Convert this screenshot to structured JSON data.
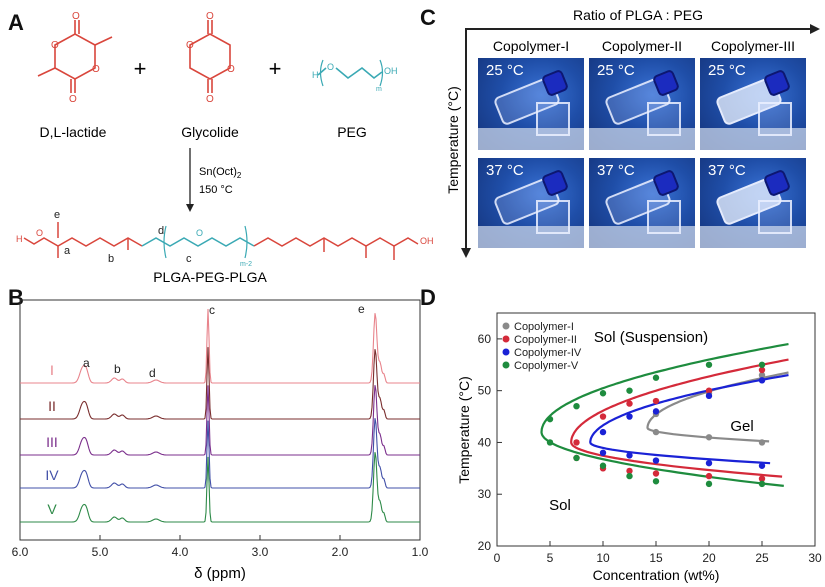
{
  "panels": {
    "A": {
      "letter": "A",
      "reactants": [
        "D,L-lactide",
        "Glycolide",
        "PEG"
      ],
      "plus": "+",
      "catalyst": "Sn(Oct)",
      "catalyst_sub": "2",
      "conditions": "150 °C",
      "product": "PLGA-PEG-PLGA",
      "peg_h": "H",
      "peg_oh": "OH",
      "peg_m": "m",
      "peg_o": "O",
      "chain_labels": [
        "a",
        "b",
        "c",
        "d",
        "e"
      ],
      "chain_n": "m-2",
      "chain_oh": "OH",
      "chain_h": "H",
      "chain_o": "O"
    },
    "B": {
      "letter": "B",
      "samples": [
        "I",
        "II",
        "III",
        "IV",
        "V"
      ],
      "sample_colors": [
        "#e8848c",
        "#7a2e2e",
        "#7b2f8c",
        "#4250a8",
        "#2e8a48"
      ],
      "peak_labels": [
        "a",
        "b",
        "d",
        "c",
        "e"
      ],
      "xlabel": "δ (ppm)",
      "xticks": [
        "6.0",
        "5.0",
        "4.0",
        "3.0",
        "2.0",
        "1.0"
      ]
    },
    "C": {
      "letter": "C",
      "axis_title": "Ratio of PLGA : PEG",
      "y_title": "Temperature (°C)",
      "columns": [
        "Copolymer-I",
        "Copolymer-II",
        "Copolymer-III"
      ],
      "rows": [
        "25 °C",
        "37 °C"
      ]
    },
    "D": {
      "letter": "D",
      "chart_data": {
        "type": "scatter",
        "xlabel": "Concentration (wt%)",
        "ylabel": "Temperature (°C)",
        "xlim": [
          0,
          30
        ],
        "ylim": [
          20,
          65
        ],
        "xticks": [
          "0",
          "5",
          "10",
          "15",
          "20",
          "25",
          "30"
        ],
        "yticks": [
          "20",
          "30",
          "40",
          "50",
          "60"
        ],
        "annotations": [
          "Sol (Suspension)",
          "Gel",
          "Sol"
        ],
        "legend_position": "top-left",
        "series": [
          {
            "name": "Copolymer-I",
            "color": "#8a8a8a",
            "points": [
              [
                15,
                45.5
              ],
              [
                20,
                49.5
              ],
              [
                25,
                53
              ],
              [
                15,
                42
              ],
              [
                20,
                41
              ],
              [
                25,
                40
              ]
            ]
          },
          {
            "name": "Copolymer-II",
            "color": "#d42a3a",
            "points": [
              [
                7.5,
                40
              ],
              [
                10,
                45
              ],
              [
                12.5,
                47.5
              ],
              [
                15,
                48
              ],
              [
                20,
                50
              ],
              [
                25,
                54
              ],
              [
                7.5,
                37
              ],
              [
                10,
                35
              ],
              [
                12.5,
                34.5
              ],
              [
                15,
                34
              ],
              [
                20,
                33.5
              ],
              [
                25,
                33
              ]
            ]
          },
          {
            "name": "Copolymer-IV",
            "color": "#1a22d6",
            "points": [
              [
                10,
                42
              ],
              [
                12.5,
                45
              ],
              [
                15,
                46
              ],
              [
                20,
                49
              ],
              [
                25,
                52
              ],
              [
                10,
                38
              ],
              [
                12.5,
                37.5
              ],
              [
                15,
                36.5
              ],
              [
                20,
                36
              ],
              [
                25,
                35.5
              ]
            ]
          },
          {
            "name": "Copolymer-V",
            "color": "#1e8c3e",
            "points": [
              [
                5,
                44.5
              ],
              [
                7.5,
                47
              ],
              [
                10,
                49.5
              ],
              [
                12.5,
                50
              ],
              [
                15,
                52.5
              ],
              [
                20,
                55
              ],
              [
                25,
                55
              ],
              [
                5,
                40
              ],
              [
                7.5,
                37
              ],
              [
                10,
                35.5
              ],
              [
                12.5,
                33.5
              ],
              [
                15,
                32.5
              ],
              [
                20,
                32
              ],
              [
                25,
                32
              ]
            ]
          }
        ]
      }
    }
  }
}
